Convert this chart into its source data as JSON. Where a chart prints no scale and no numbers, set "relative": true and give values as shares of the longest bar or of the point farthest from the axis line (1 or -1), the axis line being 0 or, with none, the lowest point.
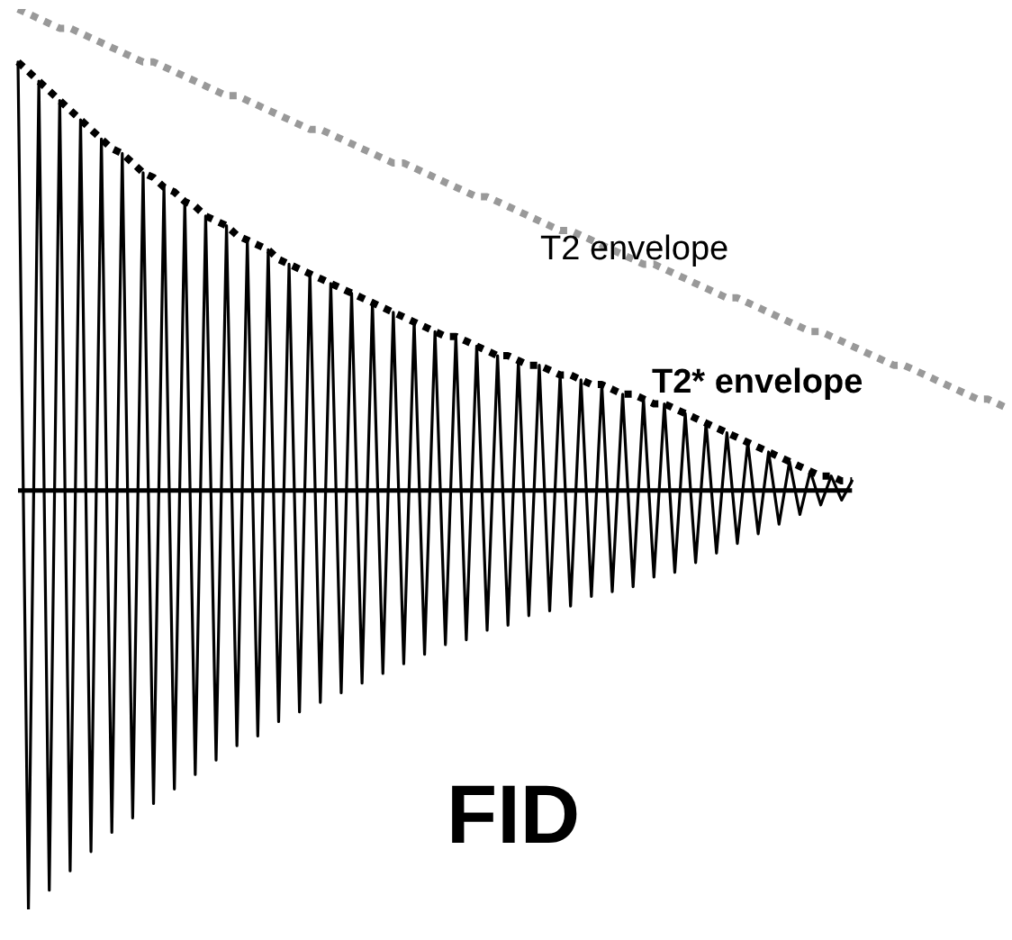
{
  "chart_data": {
    "type": "line",
    "relative": true,
    "legend": false,
    "categories": [
      null,
      null,
      null,
      null,
      null,
      null,
      null,
      null,
      null,
      null,
      null,
      null,
      null,
      null,
      null,
      null,
      null,
      null,
      null,
      null,
      null,
      null,
      null,
      null,
      null,
      null,
      null,
      null,
      null,
      null,
      null,
      null,
      null,
      null,
      null,
      null,
      null,
      null,
      null,
      null,
      null,
      null,
      null,
      null,
      null,
      null,
      null,
      null,
      null,
      null,
      null,
      null,
      null,
      null,
      null,
      null,
      null,
      null,
      null,
      null,
      null,
      null,
      null,
      null,
      null,
      null,
      null,
      null,
      null,
      null,
      null,
      null,
      null,
      null,
      null,
      null,
      null,
      null,
      null,
      null,
      null,
      null,
      null,
      null,
      null,
      null,
      null,
      null,
      null,
      null,
      null,
      null,
      null,
      null,
      null,
      null
    ],
    "series": [
      {
        "name": "T2 envelope",
        "color": "#999999",
        "line_style": "dotted",
        "values": [
          1.0,
          0.99,
          0.98,
          0.97,
          0.96,
          0.96,
          0.95,
          0.94,
          0.93,
          0.92,
          0.91,
          0.9,
          0.89,
          0.89,
          0.88,
          0.87,
          0.86,
          0.85,
          0.84,
          0.83,
          0.82,
          0.82,
          0.81,
          0.8,
          0.79,
          0.78,
          0.77,
          0.76,
          0.75,
          0.75,
          0.74,
          0.73,
          0.72,
          0.71,
          0.7,
          0.69,
          0.68,
          0.68,
          0.67,
          0.66,
          0.65,
          0.64,
          0.63,
          0.62,
          0.61,
          0.61,
          0.6,
          0.59,
          0.58,
          0.57,
          0.56,
          0.55,
          0.54,
          0.54,
          0.53,
          0.52,
          0.51,
          0.5,
          0.49,
          0.48,
          0.47,
          0.47,
          0.46,
          0.45,
          0.44,
          0.43,
          0.42,
          0.41,
          0.4,
          0.4,
          0.39,
          0.38,
          0.37,
          0.36,
          0.35,
          0.34,
          0.33,
          0.33,
          0.32,
          0.31,
          0.3,
          0.29,
          0.28,
          0.27,
          0.26,
          0.26,
          0.25,
          0.24,
          0.23,
          0.22,
          0.21,
          0.2,
          0.19,
          0.19,
          0.18,
          0.17
        ]
      },
      {
        "name": "T2* envelope",
        "color": "#000000",
        "line_style": "dotted",
        "values": [
          0.89,
          0.87,
          0.85,
          0.83,
          0.81,
          0.79,
          0.77,
          0.75,
          0.73,
          0.71,
          0.7,
          0.68,
          0.66,
          0.65,
          0.63,
          0.62,
          0.6,
          0.59,
          0.57,
          0.56,
          0.55,
          0.53,
          0.52,
          0.51,
          0.5,
          0.48,
          0.47,
          0.46,
          0.45,
          0.44,
          0.43,
          0.42,
          0.41,
          0.4,
          0.39,
          0.38,
          0.37,
          0.36,
          0.35,
          0.34,
          0.33,
          0.32,
          0.32,
          0.31,
          0.3,
          0.29,
          0.28,
          0.28,
          0.27,
          0.26,
          0.26,
          0.25,
          0.24,
          0.24,
          0.23,
          0.22,
          0.22,
          0.21,
          0.2,
          0.2,
          0.19,
          0.18,
          0.18,
          0.17,
          0.16,
          0.15,
          0.14,
          0.13,
          0.12,
          0.11,
          0.1,
          0.09,
          0.08,
          0.07,
          0.06,
          0.05,
          0.04,
          0.03,
          0.03,
          0.02,
          0.02,
          null,
          null,
          null,
          null,
          null,
          null,
          null,
          null,
          null,
          null,
          null,
          null,
          null,
          null,
          null
        ]
      },
      {
        "name": "FID",
        "color": "#000000",
        "line_style": "solid",
        "values": [
          0.89,
          -0.87,
          0.85,
          -0.83,
          0.81,
          -0.79,
          0.77,
          -0.75,
          0.73,
          -0.71,
          0.7,
          -0.68,
          0.66,
          -0.65,
          0.63,
          -0.62,
          0.6,
          -0.59,
          0.57,
          -0.56,
          0.55,
          -0.53,
          0.52,
          -0.51,
          0.5,
          -0.48,
          0.47,
          -0.46,
          0.45,
          -0.44,
          0.43,
          -0.42,
          0.41,
          -0.4,
          0.39,
          -0.38,
          0.37,
          -0.36,
          0.35,
          -0.34,
          0.33,
          -0.32,
          0.32,
          -0.31,
          0.3,
          -0.29,
          0.28,
          -0.28,
          0.27,
          -0.26,
          0.26,
          -0.25,
          0.24,
          -0.24,
          0.23,
          -0.22,
          0.22,
          -0.21,
          0.2,
          -0.2,
          0.19,
          -0.18,
          0.18,
          -0.17,
          0.16,
          -0.15,
          0.14,
          -0.13,
          0.12,
          -0.11,
          0.1,
          -0.09,
          0.08,
          -0.07,
          0.06,
          -0.05,
          0.04,
          -0.03,
          0.03,
          -0.02,
          0.02,
          null,
          null,
          null,
          null,
          null,
          null,
          null,
          null,
          null,
          null,
          null,
          null,
          null,
          null,
          null
        ]
      }
    ]
  }
}
